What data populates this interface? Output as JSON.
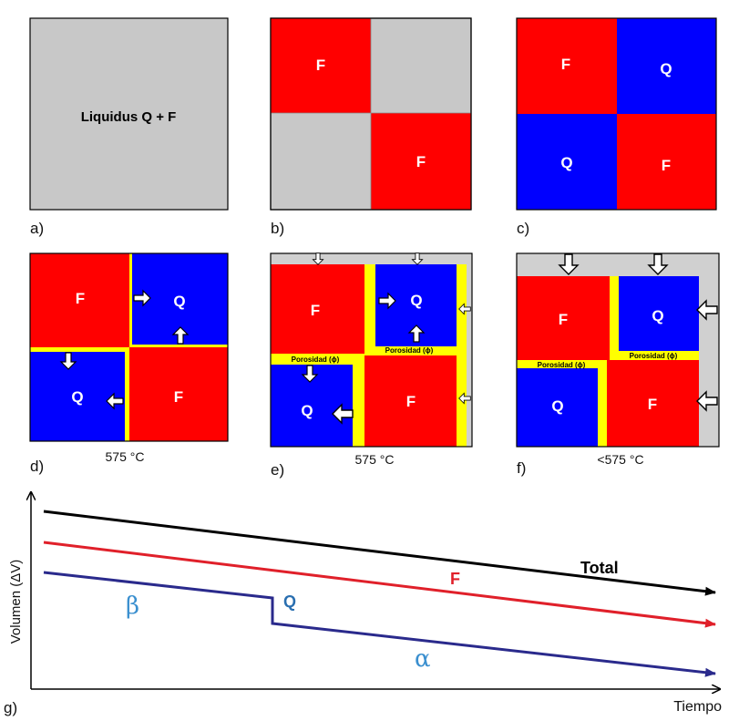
{
  "colors": {
    "gray": "#c8c8c8",
    "red": "#ff0000",
    "blue": "#0000ff",
    "yellow": "#ffff00",
    "total": "#000000",
    "f": "#e0202a",
    "q": "#2a2a8c",
    "greek": "#3a8fcf"
  },
  "panels": {
    "a": {
      "label": "a)",
      "text": "Liquidus Q + F"
    },
    "b": {
      "label": "b)",
      "tl": "F",
      "br": "F"
    },
    "c": {
      "label": "c)",
      "tl": "F",
      "tr": "Q",
      "bl": "Q",
      "br": "F"
    },
    "d": {
      "label": "d)",
      "tl": "F",
      "tr": "Q",
      "bl": "Q",
      "br": "F",
      "temp": "575 °C"
    },
    "e": {
      "label": "e)",
      "tl": "F",
      "tr": "Q",
      "bl": "Q",
      "br": "F",
      "temp": "575 °C",
      "porosity_left": "Porosidad (ϕ)",
      "porosity_right": "Porosidad (ϕ)"
    },
    "f": {
      "label": "f)",
      "tl": "F",
      "tr": "Q",
      "bl": "Q",
      "br": "F",
      "temp": "<575 °C",
      "porosity_left": "Porosidad (ϕ)",
      "porosity_right": "Porosidad (ϕ)"
    }
  },
  "graph": {
    "label": "g)",
    "ylabel": "Volumen (ΔV)",
    "xlabel": "Tiempo",
    "total_label": "Total",
    "f_label": "F",
    "q_label": "Q",
    "beta": "β",
    "alpha": "α"
  }
}
